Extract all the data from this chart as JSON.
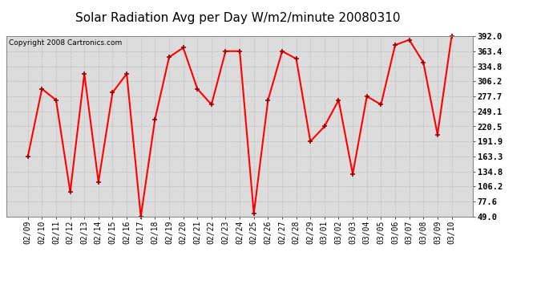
{
  "title": "Solar Radiation Avg per Day W/m2/minute 20080310",
  "copyright": "Copyright 2008 Cartronics.com",
  "labels": [
    "02/09",
    "02/10",
    "02/11",
    "02/12",
    "02/13",
    "02/14",
    "02/15",
    "02/16",
    "02/17",
    "02/18",
    "02/19",
    "02/20",
    "02/21",
    "02/22",
    "02/23",
    "02/24",
    "02/25",
    "02/26",
    "02/27",
    "02/28",
    "02/29",
    "03/01",
    "03/02",
    "03/03",
    "03/04",
    "03/05",
    "03/06",
    "03/07",
    "03/08",
    "03/09",
    "03/10"
  ],
  "values": [
    163.3,
    291.8,
    270.5,
    96.0,
    320.5,
    115.0,
    285.0,
    320.5,
    49.0,
    234.0,
    352.0,
    370.0,
    291.8,
    262.0,
    363.4,
    363.4,
    55.0,
    270.0,
    363.4,
    349.0,
    192.0,
    220.5,
    270.5,
    130.0,
    277.7,
    262.0,
    375.0,
    385.0,
    342.0,
    205.0,
    392.0
  ],
  "ylim_min": 49.0,
  "ylim_max": 392.0,
  "yticks": [
    49.0,
    77.6,
    106.2,
    134.8,
    163.3,
    191.9,
    220.5,
    249.1,
    277.7,
    306.2,
    334.8,
    363.4,
    392.0
  ],
  "ytick_labels": [
    "49.0",
    "77.6",
    "106.2",
    "134.8",
    "163.3",
    "191.9",
    "220.5",
    "249.1",
    "277.7",
    "306.2",
    "334.8",
    "363.4",
    "392.0"
  ],
  "line_color": "#FF0000",
  "marker_color": "#990000",
  "bg_color": "#FFFFFF",
  "plot_bg_color": "#DCDCDC",
  "grid_color": "#BBBBBB",
  "title_fontsize": 11,
  "tick_fontsize": 7,
  "copyright_fontsize": 6.5,
  "figwidth": 6.9,
  "figheight": 3.75,
  "dpi": 100
}
